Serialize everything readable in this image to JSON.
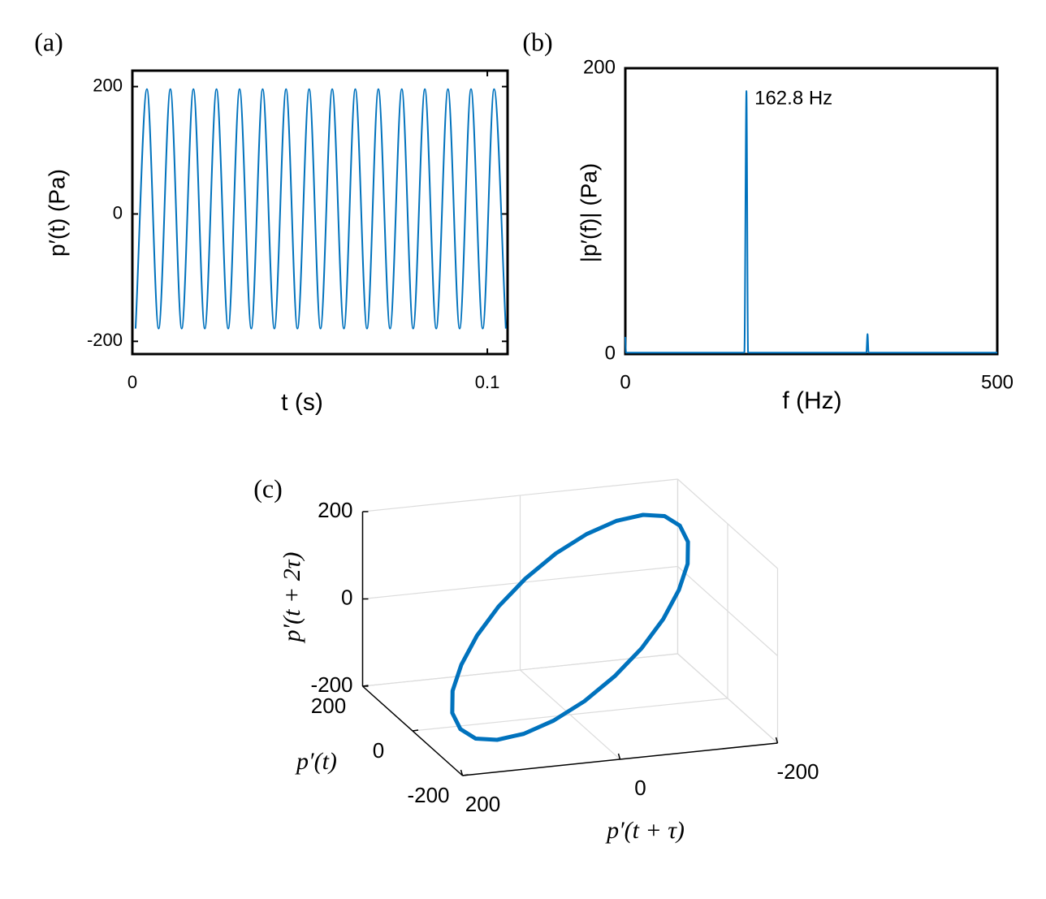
{
  "chart_data": [
    {
      "type": "line",
      "panel_label": "(a)",
      "xlabel": "t (s)",
      "ylabel": "p′(t) (Pa)",
      "x": [
        0.0009,
        0.0041,
        0.0074,
        0.0107,
        0.0139,
        0.0172,
        0.0204,
        0.0237,
        0.027,
        0.0302,
        0.0335,
        0.0367,
        0.04,
        0.0433,
        0.0465,
        0.0498,
        0.053,
        0.0563,
        0.0596,
        0.0628,
        0.0661,
        0.0693,
        0.0726,
        0.0759,
        0.0791,
        0.0824,
        0.0856,
        0.0889,
        0.0922,
        0.0954,
        0.0987,
        0.1019,
        0.1052
      ],
      "values": [
        -180,
        196,
        -180,
        196,
        -180,
        196,
        -180,
        196,
        -180,
        196,
        -180,
        196,
        -180,
        196,
        -180,
        196,
        -180,
        196,
        -180,
        196,
        -180,
        196,
        -180,
        196,
        -180,
        196,
        -180,
        196,
        -180,
        196,
        -180,
        196,
        -180
      ],
      "color": "#0072bd",
      "xlim": [
        0,
        0.1057
      ],
      "ylim": [
        -220,
        225
      ],
      "xticks": [
        0,
        0.1
      ],
      "yticks": [
        -200,
        0,
        200
      ]
    },
    {
      "type": "line",
      "panel_label": "(b)",
      "xlabel": "f (Hz)",
      "ylabel": "|p′(f)| (Pa)",
      "annotation": "162.8 Hz",
      "x": [
        0,
        1,
        160,
        162.8,
        165,
        324,
        325.6,
        327,
        500
      ],
      "values": [
        12,
        1,
        1,
        184,
        1,
        1,
        14,
        1,
        1
      ],
      "color": "#0072bd",
      "xlim": [
        0,
        500
      ],
      "ylim": [
        0,
        200
      ],
      "xticks": [
        0,
        500
      ],
      "yticks": [
        0,
        200
      ]
    },
    {
      "type": "line3d",
      "panel_label": "(c)",
      "xlabel": "p′(t + τ)",
      "ylabel": "p′(t)",
      "zlabel": "p′(t + 2τ)",
      "x": [
        -171,
        -168,
        -153,
        -127,
        -93,
        -53,
        -9,
        36,
        78,
        115,
        144,
        163,
        171,
        168,
        153,
        127,
        93,
        53,
        9,
        -36,
        -78,
        -115,
        -144,
        -163
      ],
      "y": [
        100,
        58,
        12,
        -35,
        -80,
        -119,
        -150,
        -171,
        -180,
        -177,
        -162,
        -136,
        -100,
        -58,
        -12,
        35,
        80,
        119,
        150,
        171,
        180,
        177,
        162,
        136
      ],
      "z": [
        150,
        135,
        111,
        80,
        43,
        3,
        -37,
        -75,
        -107,
        -132,
        -148,
        -155,
        -150,
        -135,
        -111,
        -80,
        -43,
        -3,
        37,
        75,
        107,
        132,
        148,
        155
      ],
      "color": "#0072bd",
      "xlim": [
        -200,
        200
      ],
      "ylim": [
        -200,
        200
      ],
      "zlim": [
        -200,
        200
      ],
      "xticks": [
        -200,
        0,
        200
      ],
      "yticks": [
        -200,
        0,
        200
      ],
      "zticks": [
        -200,
        0,
        200
      ],
      "grid": true
    }
  ]
}
